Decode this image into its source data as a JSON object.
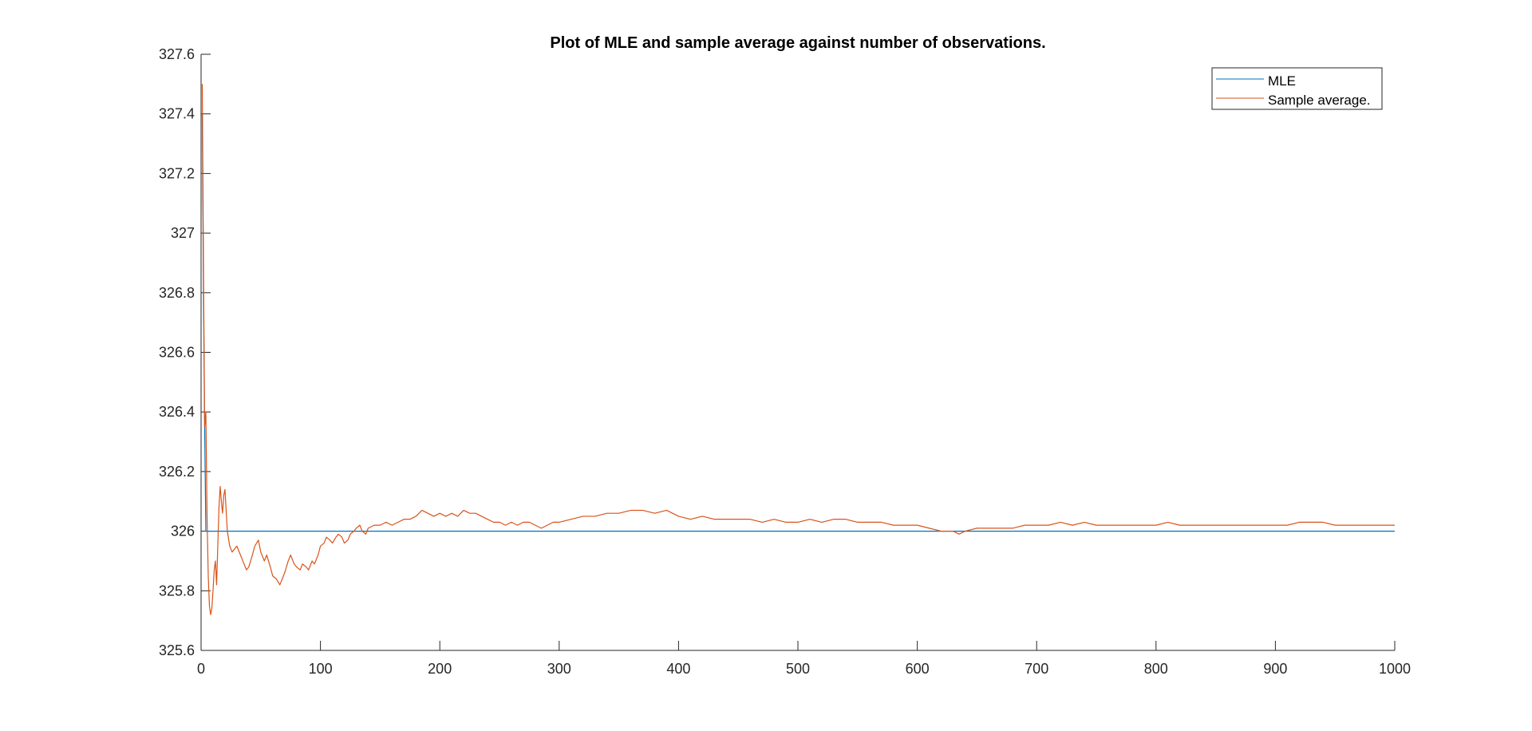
{
  "chart_data": {
    "type": "line",
    "title": "Plot of MLE and sample average against number of observations.",
    "xlabel": "",
    "ylabel": "",
    "xlim": [
      0,
      1000
    ],
    "ylim": [
      325.6,
      327.6
    ],
    "x_ticks": [
      0,
      100,
      200,
      300,
      400,
      500,
      600,
      700,
      800,
      900,
      1000
    ],
    "x_tick_labels": [
      "0",
      "100",
      "200",
      "300",
      "400",
      "500",
      "600",
      "700",
      "800",
      "900",
      "1000"
    ],
    "y_ticks": [
      325.6,
      325.8,
      326,
      326.2,
      326.4,
      326.6,
      326.8,
      327,
      327.2,
      327.4,
      327.6
    ],
    "y_tick_labels": [
      "325.6",
      "325.8",
      "326",
      "326.2",
      "326.4",
      "326.6",
      "326.8",
      "327",
      "327.2",
      "327.4",
      "327.6"
    ],
    "grid": false,
    "legend_position": "top-right",
    "series": [
      {
        "name": "MLE",
        "color": "#0072BD",
        "x": [
          1,
          2,
          3,
          4,
          5,
          1000
        ],
        "y": [
          327.4,
          326.8,
          326.35,
          326.0,
          326.0,
          326.0
        ]
      },
      {
        "name": "Sample average.",
        "color": "#D95319",
        "x": [
          1,
          2,
          3,
          4,
          5,
          6,
          7,
          8,
          9,
          10,
          11,
          12,
          13,
          14,
          15,
          16,
          17,
          18,
          19,
          20,
          22,
          24,
          26,
          28,
          30,
          32,
          35,
          38,
          40,
          43,
          45,
          48,
          50,
          53,
          55,
          58,
          60,
          63,
          66,
          68,
          70,
          73,
          75,
          78,
          80,
          83,
          85,
          88,
          90,
          93,
          95,
          98,
          100,
          103,
          105,
          108,
          110,
          113,
          115,
          118,
          120,
          123,
          125,
          128,
          130,
          133,
          135,
          138,
          140,
          145,
          150,
          155,
          160,
          165,
          170,
          175,
          180,
          185,
          190,
          195,
          200,
          205,
          210,
          215,
          220,
          225,
          230,
          235,
          240,
          245,
          250,
          255,
          260,
          265,
          270,
          275,
          280,
          285,
          290,
          295,
          300,
          310,
          320,
          330,
          340,
          350,
          360,
          370,
          380,
          390,
          395,
          400,
          410,
          420,
          430,
          440,
          450,
          460,
          470,
          480,
          490,
          500,
          510,
          520,
          530,
          540,
          550,
          560,
          570,
          580,
          590,
          600,
          610,
          620,
          630,
          635,
          640,
          650,
          660,
          670,
          680,
          690,
          700,
          710,
          720,
          730,
          740,
          750,
          760,
          770,
          780,
          790,
          800,
          810,
          820,
          830,
          840,
          850,
          860,
          870,
          880,
          890,
          900,
          910,
          920,
          930,
          940,
          950,
          960,
          970,
          980,
          990,
          1000
        ],
        "y": [
          327.5,
          326.9,
          326.35,
          326.4,
          326.05,
          325.85,
          325.75,
          325.72,
          325.74,
          325.8,
          325.87,
          325.9,
          325.82,
          325.95,
          326.08,
          326.15,
          326.1,
          326.06,
          326.12,
          326.14,
          326.0,
          325.95,
          325.93,
          325.94,
          325.95,
          325.93,
          325.9,
          325.87,
          325.88,
          325.92,
          325.95,
          325.97,
          325.93,
          325.9,
          325.92,
          325.88,
          325.85,
          325.84,
          325.82,
          325.84,
          325.86,
          325.9,
          325.92,
          325.89,
          325.88,
          325.87,
          325.89,
          325.88,
          325.87,
          325.9,
          325.89,
          325.92,
          325.95,
          325.96,
          325.98,
          325.97,
          325.96,
          325.98,
          325.99,
          325.98,
          325.96,
          325.97,
          325.99,
          326.0,
          326.01,
          326.02,
          326.0,
          325.99,
          326.01,
          326.02,
          326.02,
          326.03,
          326.02,
          326.03,
          326.04,
          326.04,
          326.05,
          326.07,
          326.06,
          326.05,
          326.06,
          326.05,
          326.06,
          326.05,
          326.07,
          326.06,
          326.06,
          326.05,
          326.04,
          326.03,
          326.03,
          326.02,
          326.03,
          326.02,
          326.03,
          326.03,
          326.02,
          326.01,
          326.02,
          326.03,
          326.03,
          326.04,
          326.05,
          326.05,
          326.06,
          326.06,
          326.07,
          326.07,
          326.06,
          326.07,
          326.06,
          326.05,
          326.04,
          326.05,
          326.04,
          326.04,
          326.04,
          326.04,
          326.03,
          326.04,
          326.03,
          326.03,
          326.04,
          326.03,
          326.04,
          326.04,
          326.03,
          326.03,
          326.03,
          326.02,
          326.02,
          326.02,
          326.01,
          326.0,
          326.0,
          325.99,
          326.0,
          326.01,
          326.01,
          326.01,
          326.01,
          326.02,
          326.02,
          326.02,
          326.03,
          326.02,
          326.03,
          326.02,
          326.02,
          326.02,
          326.02,
          326.02,
          326.02,
          326.03,
          326.02,
          326.02,
          326.02,
          326.02,
          326.02,
          326.02,
          326.02,
          326.02,
          326.02,
          326.02,
          326.03,
          326.03,
          326.03,
          326.02,
          326.02,
          326.02,
          326.02,
          326.02,
          326.02
        ]
      }
    ]
  }
}
